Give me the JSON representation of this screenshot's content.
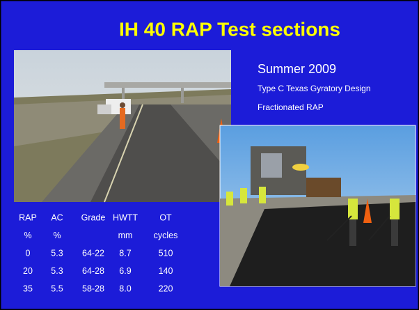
{
  "title": "IH 40 RAP Test sections",
  "subtitle": "Summer 2009",
  "description": [
    "Type C  Texas Gyratory Design",
    "Fractionated RAP"
  ],
  "table": {
    "header": [
      [
        "RAP",
        "AC",
        "Grade",
        "HWTT",
        "OT"
      ],
      [
        "%",
        "%",
        null,
        "mm",
        "cycles"
      ]
    ],
    "rows": [
      [
        "0",
        "5.3",
        "64-22",
        "8.7",
        "510"
      ],
      [
        "20",
        "5.3",
        "64-28",
        "6.9",
        "140"
      ],
      [
        "35",
        "5.5",
        "58-28",
        "8.0",
        "220"
      ]
    ]
  }
}
